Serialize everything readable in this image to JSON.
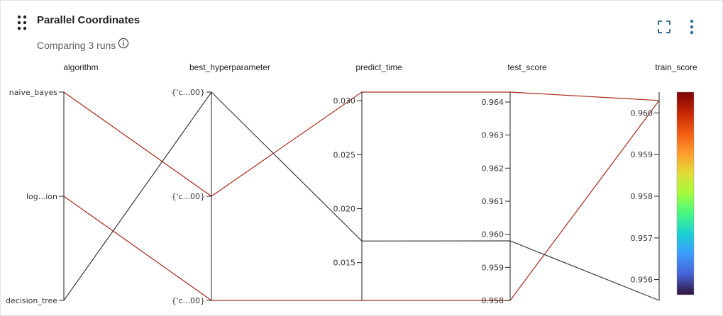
{
  "header": {
    "title": "Parallel Coordinates",
    "subtitle": "Comparing 3 runs",
    "icons": {
      "drag": "drag-handle-icon",
      "info": "info-icon",
      "expand": "expand-icon",
      "more": "more-vertical-icon"
    }
  },
  "chart_data": {
    "type": "parallel-coordinates",
    "dimensions": [
      {
        "name": "algorithm",
        "kind": "categorical",
        "ticks": [
          "naive_bayes",
          "log...ion",
          "decision_tree"
        ]
      },
      {
        "name": "best_hyperparameter",
        "kind": "categorical",
        "ticks": [
          "{'c...00}",
          "{'c...00}",
          "{'c...00}"
        ]
      },
      {
        "name": "predict_time",
        "kind": "numeric",
        "range": [
          0.0115,
          0.0308
        ],
        "ticks": [
          0.015,
          0.02,
          0.025,
          0.03
        ],
        "tick_labels": [
          "0.015",
          "0.020",
          "0.025",
          "0.030"
        ]
      },
      {
        "name": "test_score",
        "kind": "numeric",
        "range": [
          0.958,
          0.9643
        ],
        "ticks": [
          0.958,
          0.959,
          0.96,
          0.961,
          0.962,
          0.963,
          0.964
        ],
        "tick_labels": [
          "0.958",
          "0.959",
          "0.960",
          "0.961",
          "0.962",
          "0.963",
          "0.964"
        ]
      },
      {
        "name": "train_score",
        "kind": "numeric",
        "range": [
          0.9555,
          0.9605
        ],
        "ticks": [
          0.956,
          0.957,
          0.958,
          0.959,
          0.96
        ],
        "tick_labels": [
          "0.956",
          "0.957",
          "0.958",
          "0.959",
          "0.960"
        ]
      }
    ],
    "runs": [
      {
        "algorithm": 0,
        "best_hyperparameter": 1,
        "predict_time": 0.0308,
        "test_score": 0.9643,
        "train_score": 0.9603,
        "color": "#a52a1a"
      },
      {
        "algorithm": 1,
        "best_hyperparameter": 2,
        "predict_time": 0.0115,
        "test_score": 0.958,
        "train_score": 0.9603,
        "color": "#a52a1a"
      },
      {
        "algorithm": 2,
        "best_hyperparameter": 0,
        "predict_time": 0.017,
        "test_score": 0.9598,
        "train_score": 0.9555,
        "color": "#3a3a3a"
      }
    ],
    "colorbar": {
      "dimension": "train_score",
      "stops": [
        "#7a0403",
        "#c42503",
        "#f05b12",
        "#fe9b2d",
        "#e1dd37",
        "#a2fc3c",
        "#46f884",
        "#1bd0d5",
        "#3e9bfe",
        "#4662d7",
        "#30123b"
      ]
    }
  }
}
